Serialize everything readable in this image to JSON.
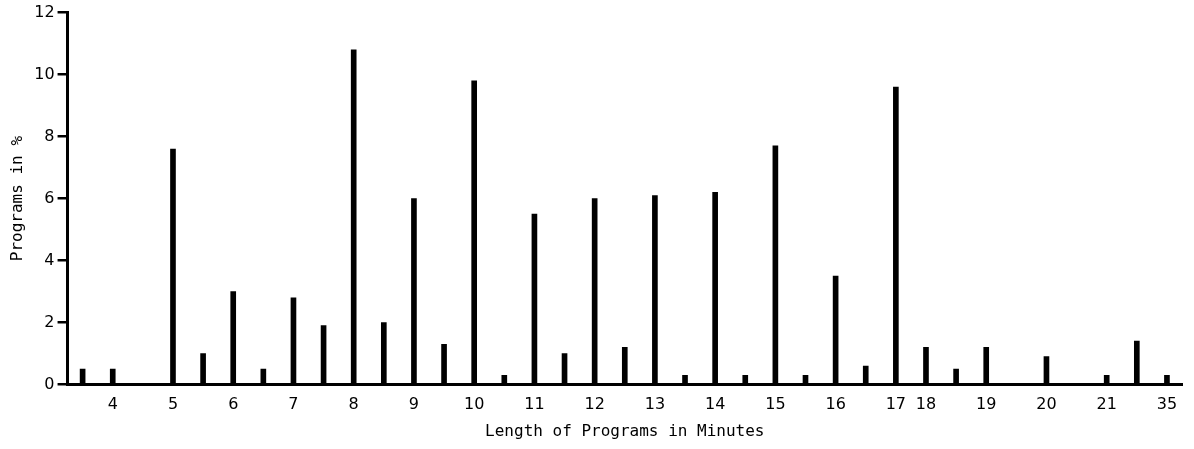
{
  "chart_data": {
    "type": "bar",
    "xlabel": "Length of Programs in Minutes",
    "ylabel": "Programs in %",
    "categories": [
      null,
      "4",
      null,
      "5",
      null,
      "6",
      null,
      "7",
      null,
      "8",
      null,
      "9",
      null,
      "10",
      null,
      "11",
      null,
      "12",
      null,
      "13",
      null,
      "14",
      null,
      "15",
      null,
      "16",
      null,
      "17",
      "18",
      null,
      "19",
      null,
      "20",
      null,
      "21",
      null,
      "35"
    ],
    "values": [
      0.5,
      0.5,
      null,
      7.6,
      1.0,
      3.0,
      0.5,
      2.8,
      1.9,
      10.8,
      2.0,
      6.0,
      1.3,
      9.8,
      0.3,
      5.5,
      1.0,
      6.0,
      1.2,
      6.1,
      0.3,
      6.2,
      0.3,
      7.7,
      0.3,
      3.5,
      0.6,
      9.6,
      1.2,
      0.5,
      1.2,
      null,
      0.9,
      null,
      0.3,
      1.4,
      0.3
    ],
    "color": "#000000",
    "ylim": [
      0,
      12
    ],
    "yticks": [
      0,
      2,
      4,
      6,
      8,
      10,
      12
    ]
  }
}
